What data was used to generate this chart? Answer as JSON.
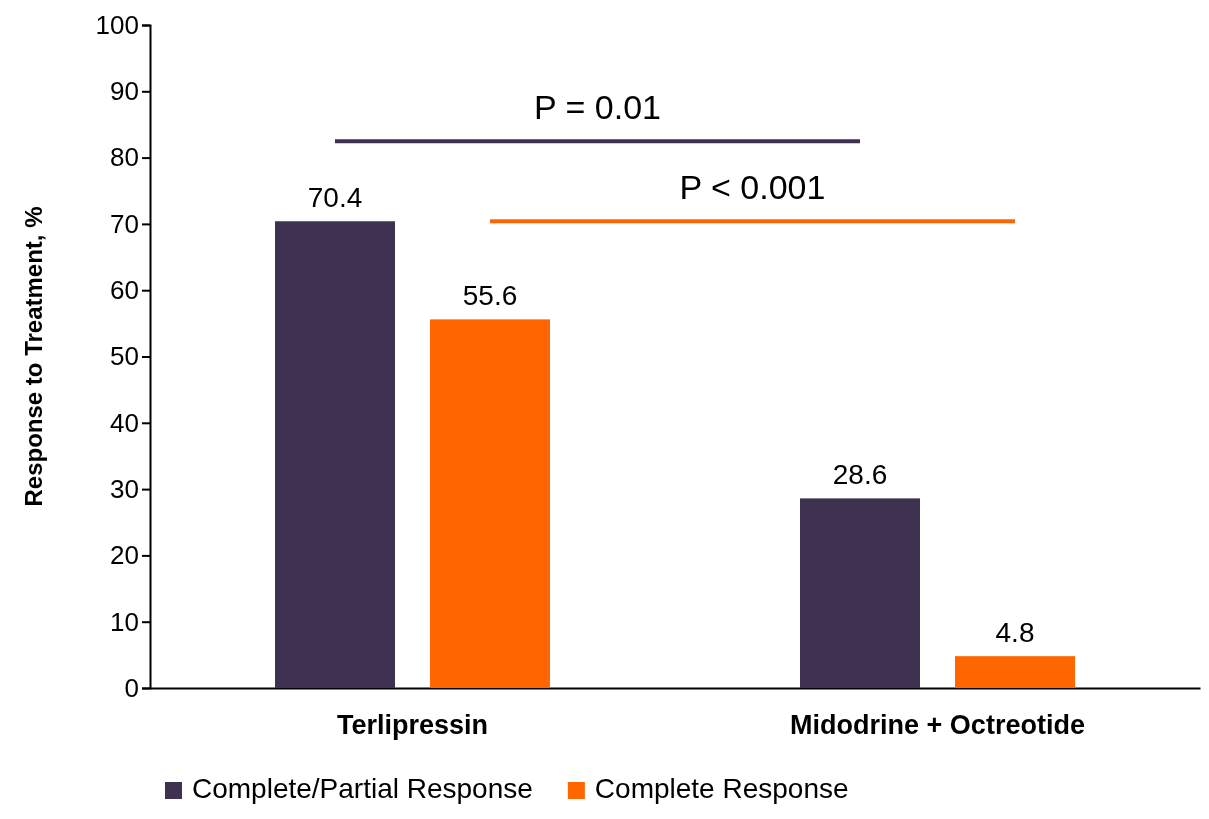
{
  "chart_data": {
    "type": "bar",
    "ylabel": "Response to Treatment, %",
    "categories": [
      "Terlipressin",
      "Midodrine + Octreotide"
    ],
    "series": [
      {
        "name": "Complete/Partial Response",
        "color": "#3f3150",
        "values": [
          70.4,
          28.6
        ]
      },
      {
        "name": "Complete Response",
        "color": "#ff6600",
        "values": [
          55.6,
          4.8
        ]
      }
    ],
    "ylim": [
      0,
      100
    ],
    "yticks": [
      0,
      10,
      20,
      30,
      40,
      50,
      60,
      70,
      80,
      90,
      100
    ],
    "data_labels": true,
    "legend": "bottom",
    "grid": false,
    "annotations": [
      "P = 0.01",
      "P < 0.001"
    ]
  }
}
